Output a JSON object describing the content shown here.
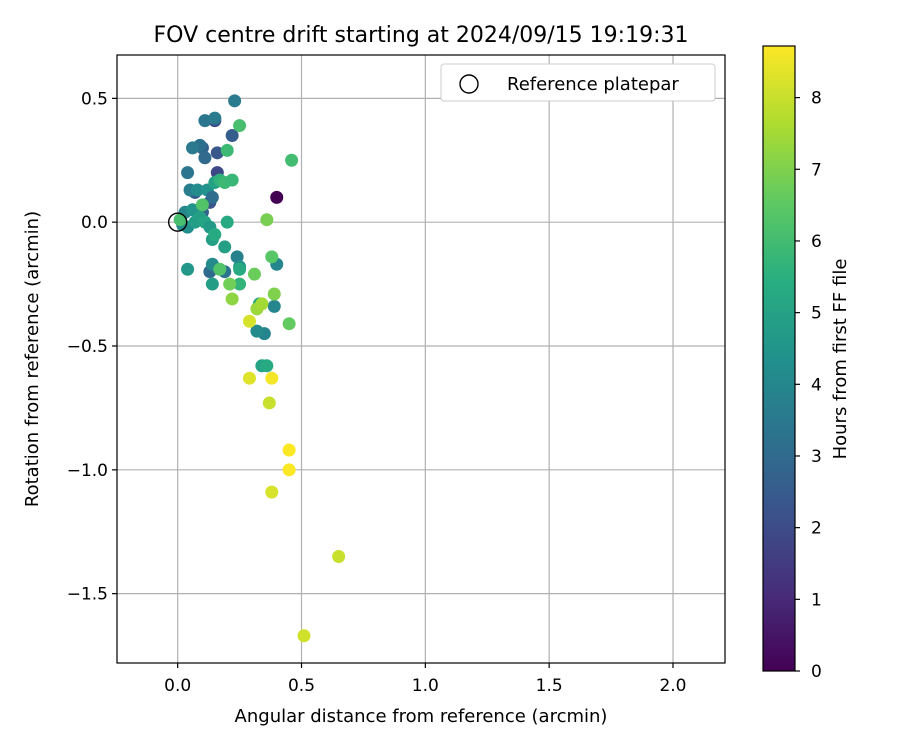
{
  "chart_data": {
    "type": "scatter",
    "title": "FOV centre drift starting at 2024/09/15 19:19:31",
    "xlabel": "Angular distance from reference (arcmin)",
    "ylabel": "Rotation from reference (arcmin)",
    "xlim": [
      -0.245,
      2.21
    ],
    "ylim": [
      -1.78,
      0.675
    ],
    "x_ticks": [
      0.0,
      0.5,
      1.0,
      1.5,
      2.0
    ],
    "x_tick_labels": [
      "0.0",
      "0.5",
      "1.0",
      "1.5",
      "2.0"
    ],
    "y_ticks": [
      0.5,
      0.0,
      -0.5,
      -1.0,
      -1.5
    ],
    "y_tick_labels": [
      "0.5",
      "0.0",
      "−0.5",
      "−1.0",
      "−1.5"
    ],
    "grid": true,
    "colormap": "viridis",
    "colorbar": {
      "label": "Hours from first FF file",
      "range": [
        0,
        8.72
      ],
      "ticks": [
        0,
        1,
        2,
        3,
        4,
        5,
        6,
        7,
        8
      ],
      "tick_labels": [
        "0",
        "1",
        "2",
        "3",
        "4",
        "5",
        "6",
        "7",
        "8"
      ]
    },
    "legend": {
      "placement": "top-right",
      "entries": [
        "Reference platepar"
      ]
    },
    "reference_point": {
      "x": 0.0,
      "y": 0.0
    },
    "points": [
      {
        "x": 0.4,
        "y": 0.1,
        "t": 0.0
      },
      {
        "x": 0.15,
        "y": 0.41,
        "t": 2.0
      },
      {
        "x": 0.16,
        "y": 0.2,
        "t": 1.9
      },
      {
        "x": 0.16,
        "y": 0.28,
        "t": 2.4
      },
      {
        "x": 0.22,
        "y": 0.35,
        "t": 2.6
      },
      {
        "x": 0.13,
        "y": 0.08,
        "t": 2.2
      },
      {
        "x": 0.1,
        "y": 0.3,
        "t": 2.7
      },
      {
        "x": 0.11,
        "y": 0.26,
        "t": 3.0
      },
      {
        "x": 0.09,
        "y": 0.31,
        "t": 3.2
      },
      {
        "x": 0.07,
        "y": 0.12,
        "t": 2.4
      },
      {
        "x": 0.1,
        "y": 0.04,
        "t": 2.8
      },
      {
        "x": 0.23,
        "y": 0.49,
        "t": 3.6
      },
      {
        "x": 0.11,
        "y": 0.41,
        "t": 3.4
      },
      {
        "x": 0.15,
        "y": 0.42,
        "t": 3.6
      },
      {
        "x": 0.06,
        "y": 0.3,
        "t": 3.5
      },
      {
        "x": 0.04,
        "y": 0.2,
        "t": 3.4
      },
      {
        "x": 0.05,
        "y": 0.13,
        "t": 3.7
      },
      {
        "x": 0.08,
        "y": 0.13,
        "t": 4.2
      },
      {
        "x": 0.12,
        "y": 0.13,
        "t": 4.4
      },
      {
        "x": 0.14,
        "y": 0.1,
        "t": 3.1
      },
      {
        "x": 0.13,
        "y": -0.2,
        "t": 3.0
      },
      {
        "x": 0.19,
        "y": -0.2,
        "t": 3.3
      },
      {
        "x": 0.24,
        "y": -0.14,
        "t": 3.8
      },
      {
        "x": 0.25,
        "y": -0.18,
        "t": 4.4
      },
      {
        "x": 0.14,
        "y": -0.17,
        "t": 4.1
      },
      {
        "x": 0.35,
        "y": -0.45,
        "t": 3.9
      },
      {
        "x": 0.32,
        "y": -0.44,
        "t": 4.1
      },
      {
        "x": 0.4,
        "y": -0.17,
        "t": 4.0
      },
      {
        "x": 0.39,
        "y": -0.34,
        "t": 4.0
      },
      {
        "x": 0.04,
        "y": -0.19,
        "t": 4.6
      },
      {
        "x": 0.02,
        "y": -0.01,
        "t": 4.1
      },
      {
        "x": 0.04,
        "y": -0.02,
        "t": 4.3
      },
      {
        "x": 0.03,
        "y": 0.04,
        "t": 4.0
      },
      {
        "x": 0.06,
        "y": 0.05,
        "t": 4.5
      },
      {
        "x": 0.07,
        "y": 0.0,
        "t": 4.8
      },
      {
        "x": 0.09,
        "y": 0.02,
        "t": 4.9
      },
      {
        "x": 0.11,
        "y": 0.0,
        "t": 5.1
      },
      {
        "x": 0.13,
        "y": -0.02,
        "t": 4.7
      },
      {
        "x": 0.14,
        "y": -0.07,
        "t": 4.9
      },
      {
        "x": 0.15,
        "y": -0.05,
        "t": 5.3
      },
      {
        "x": 0.14,
        "y": -0.25,
        "t": 4.8
      },
      {
        "x": 0.19,
        "y": -0.1,
        "t": 4.9
      },
      {
        "x": 0.2,
        "y": -0.0,
        "t": 5.3
      },
      {
        "x": 0.25,
        "y": -0.19,
        "t": 5.3
      },
      {
        "x": 0.25,
        "y": -0.25,
        "t": 5.7
      },
      {
        "x": 0.33,
        "y": -0.33,
        "t": 5.2
      },
      {
        "x": 0.34,
        "y": -0.58,
        "t": 5.0
      },
      {
        "x": 0.36,
        "y": -0.58,
        "t": 5.3
      },
      {
        "x": 0.15,
        "y": 0.16,
        "t": 5.0
      },
      {
        "x": 0.17,
        "y": 0.17,
        "t": 5.6
      },
      {
        "x": 0.19,
        "y": 0.16,
        "t": 5.9
      },
      {
        "x": 0.22,
        "y": 0.17,
        "t": 5.8
      },
      {
        "x": 0.2,
        "y": 0.29,
        "t": 5.9
      },
      {
        "x": 0.25,
        "y": 0.39,
        "t": 6.1
      },
      {
        "x": 0.46,
        "y": 0.25,
        "t": 6.0
      },
      {
        "x": 0.1,
        "y": 0.07,
        "t": 6.3
      },
      {
        "x": 0.01,
        "y": 0.01,
        "t": 6.1
      },
      {
        "x": 0.17,
        "y": -0.19,
        "t": 6.3
      },
      {
        "x": 0.38,
        "y": -0.14,
        "t": 6.4
      },
      {
        "x": 0.21,
        "y": -0.25,
        "t": 6.8
      },
      {
        "x": 0.31,
        "y": -0.21,
        "t": 6.7
      },
      {
        "x": 0.45,
        "y": -0.41,
        "t": 6.6
      },
      {
        "x": 0.36,
        "y": 0.01,
        "t": 6.9
      },
      {
        "x": 0.39,
        "y": -0.29,
        "t": 7.0
      },
      {
        "x": 0.22,
        "y": -0.31,
        "t": 7.2
      },
      {
        "x": 0.32,
        "y": -0.35,
        "t": 7.4
      },
      {
        "x": 0.34,
        "y": -0.33,
        "t": 7.5
      },
      {
        "x": 0.29,
        "y": -0.4,
        "t": 8.2
      },
      {
        "x": 0.29,
        "y": -0.63,
        "t": 8.3
      },
      {
        "x": 0.38,
        "y": -0.63,
        "t": 8.6
      },
      {
        "x": 0.37,
        "y": -0.73,
        "t": 8.0
      },
      {
        "x": 0.45,
        "y": -0.92,
        "t": 8.7
      },
      {
        "x": 0.45,
        "y": -1.0,
        "t": 8.7
      },
      {
        "x": 0.38,
        "y": -1.09,
        "t": 8.2
      },
      {
        "x": 0.65,
        "y": -1.35,
        "t": 8.0
      },
      {
        "x": 0.51,
        "y": -1.67,
        "t": 8.1
      }
    ]
  }
}
